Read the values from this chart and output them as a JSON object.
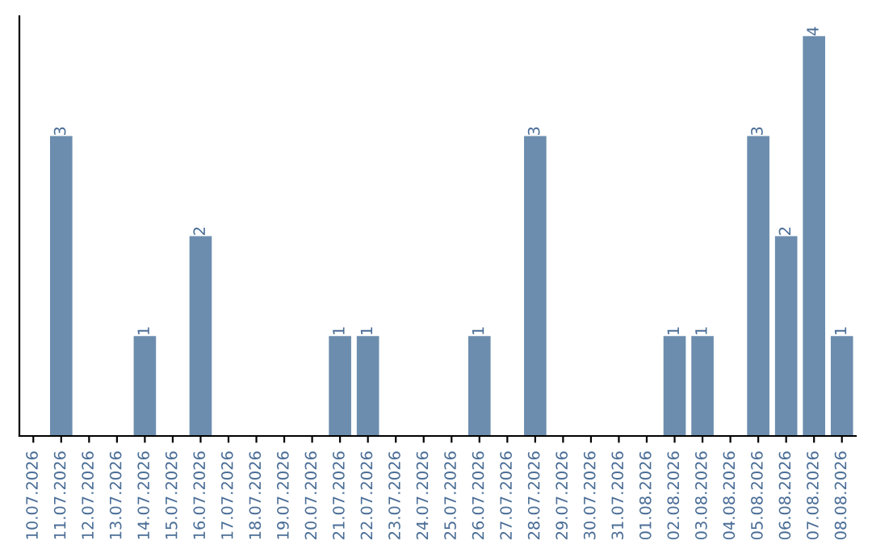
{
  "chart_data": {
    "type": "bar",
    "categories": [
      "10.07.2026",
      "11.07.2026",
      "12.07.2026",
      "13.07.2026",
      "14.07.2026",
      "15.07.2026",
      "16.07.2026",
      "17.07.2026",
      "18.07.2026",
      "19.07.2026",
      "20.07.2026",
      "21.07.2026",
      "22.07.2026",
      "23.07.2026",
      "24.07.2026",
      "25.07.2026",
      "26.07.2026",
      "27.07.2026",
      "28.07.2026",
      "29.07.2026",
      "30.07.2026",
      "31.07.2026",
      "01.08.2026",
      "02.08.2026",
      "03.08.2026",
      "04.08.2026",
      "05.08.2026",
      "06.08.2026",
      "07.08.2026",
      "08.08.2026"
    ],
    "values": [
      0,
      3,
      0,
      0,
      1,
      0,
      2,
      0,
      0,
      0,
      0,
      1,
      1,
      0,
      0,
      0,
      1,
      0,
      3,
      0,
      0,
      0,
      0,
      1,
      1,
      0,
      3,
      2,
      4,
      1
    ],
    "value_labels": [
      null,
      "3",
      null,
      null,
      "1",
      null,
      "2",
      null,
      null,
      null,
      null,
      "1",
      "1",
      null,
      null,
      null,
      "1",
      null,
      "3",
      null,
      null,
      null,
      null,
      "1",
      "1",
      null,
      "3",
      "2",
      "4",
      "1"
    ],
    "color": "#6c8dae",
    "ylim": [
      0,
      4.2
    ],
    "tick_labels": "x",
    "grid": false,
    "legend": false
  }
}
